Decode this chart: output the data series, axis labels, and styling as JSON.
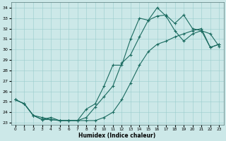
{
  "xlabel": "Humidex (Indice chaleur)",
  "bg_color": "#cce8e8",
  "grid_color": "#99cccc",
  "line_color": "#1a6b60",
  "xlim": [
    -0.5,
    23.5
  ],
  "ylim": [
    22.8,
    34.5
  ],
  "yticks": [
    23,
    24,
    25,
    26,
    27,
    28,
    29,
    30,
    31,
    32,
    33,
    34
  ],
  "xticks": [
    0,
    1,
    2,
    3,
    4,
    5,
    6,
    7,
    8,
    9,
    10,
    11,
    12,
    13,
    14,
    15,
    16,
    17,
    18,
    19,
    20,
    21,
    22,
    23
  ],
  "line1_x": [
    0,
    1,
    2,
    3,
    4,
    5,
    6,
    7,
    8,
    9,
    10,
    11,
    12,
    13,
    14,
    15,
    16,
    17,
    18,
    19,
    20,
    21,
    22,
    23
  ],
  "line1_y": [
    25.2,
    24.8,
    23.7,
    23.3,
    23.3,
    23.2,
    23.2,
    23.2,
    23.2,
    23.2,
    23.5,
    24.0,
    25.2,
    26.8,
    28.5,
    29.8,
    30.5,
    30.8,
    31.2,
    31.5,
    31.8,
    32.0,
    30.2,
    30.5
  ],
  "line2_x": [
    0,
    1,
    2,
    3,
    4,
    5,
    6,
    7,
    8,
    9,
    10,
    11,
    12,
    13,
    14,
    15,
    16,
    17,
    18,
    19,
    20,
    21,
    22,
    23
  ],
  "line2_y": [
    25.2,
    24.8,
    23.7,
    23.3,
    23.5,
    23.2,
    23.2,
    23.2,
    24.3,
    24.8,
    26.5,
    28.5,
    28.5,
    31.0,
    33.0,
    32.8,
    34.0,
    33.2,
    31.8,
    30.8,
    31.5,
    31.8,
    30.2,
    30.5
  ],
  "line3_x": [
    0,
    1,
    2,
    3,
    4,
    5,
    6,
    7,
    8,
    9,
    10,
    11,
    12,
    13,
    14,
    15,
    16,
    17,
    18,
    19,
    20,
    21,
    22,
    23
  ],
  "line3_y": [
    25.2,
    24.8,
    23.7,
    23.5,
    23.3,
    23.2,
    23.2,
    23.2,
    23.5,
    24.5,
    25.5,
    26.5,
    28.7,
    29.5,
    31.2,
    32.8,
    33.2,
    33.3,
    32.5,
    33.3,
    32.0,
    31.8,
    31.5,
    30.3
  ]
}
